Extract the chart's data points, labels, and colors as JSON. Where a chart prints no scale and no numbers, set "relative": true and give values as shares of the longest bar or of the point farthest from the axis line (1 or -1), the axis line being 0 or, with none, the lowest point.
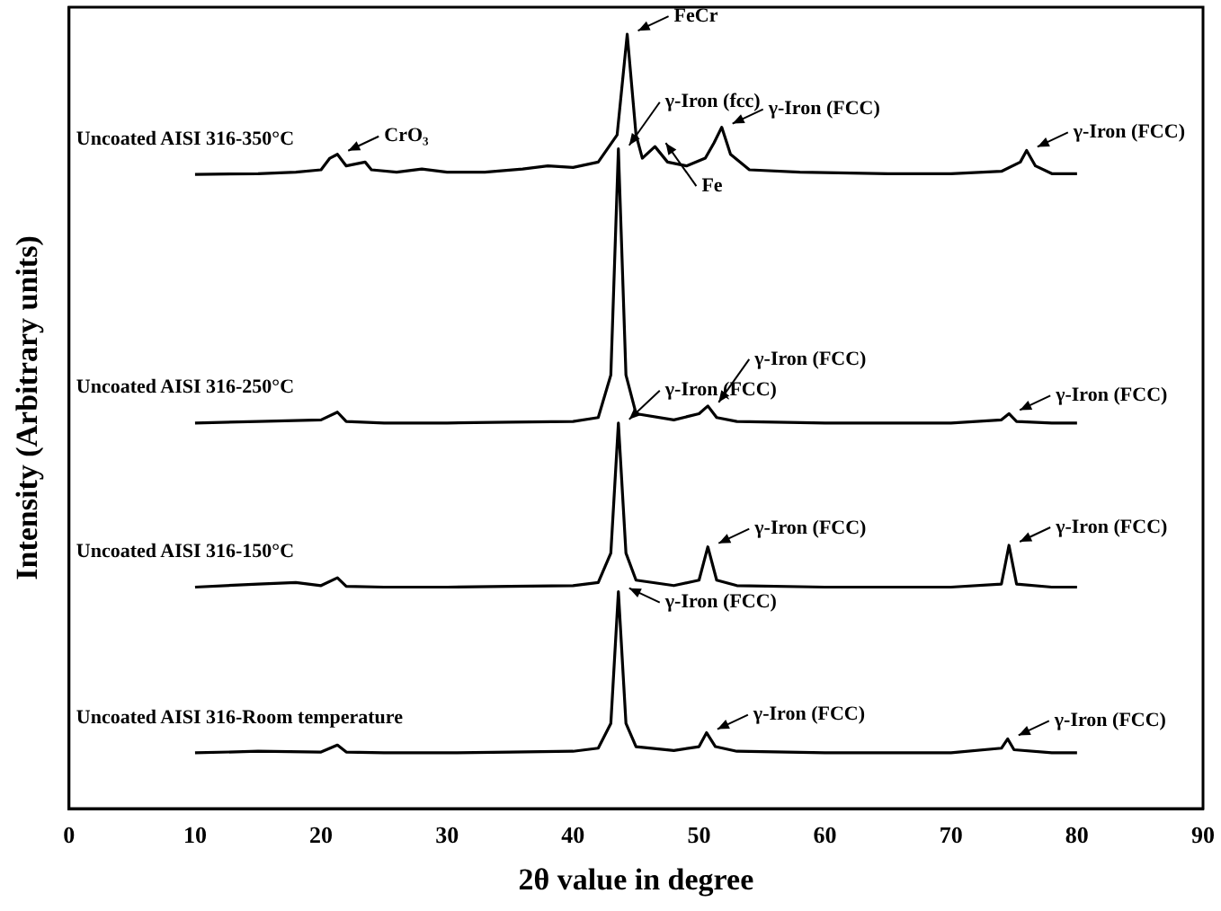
{
  "chart_data": {
    "type": "line",
    "relative": true,
    "xlabel": "2θ value in degree",
    "ylabel": "Intensity (Arbitrary units)",
    "xlim": [
      0,
      90
    ],
    "xticks": [
      0,
      10,
      20,
      30,
      40,
      50,
      60,
      70,
      80,
      90
    ],
    "grid": false,
    "legend": false,
    "tick_labels": "x",
    "marker": "none",
    "line_style": "solid",
    "series": [
      {
        "name": "Uncoated AISI 316-Room temperature",
        "color": "#000000",
        "x": [
          10,
          15,
          20,
          21.3,
          22,
          25,
          30,
          35,
          40,
          42,
          43,
          43.6,
          44.2,
          45,
          48,
          50,
          50.6,
          51.3,
          53,
          60,
          70,
          74,
          74.5,
          75,
          78,
          80
        ],
        "values": [
          0.072,
          0.074,
          0.073,
          0.082,
          0.073,
          0.072,
          0.072,
          0.073,
          0.074,
          0.078,
          0.11,
          0.28,
          0.11,
          0.08,
          0.075,
          0.08,
          0.098,
          0.08,
          0.074,
          0.072,
          0.072,
          0.078,
          0.09,
          0.076,
          0.072,
          0.072
        ]
      },
      {
        "name": "Uncoated AISI 316-150°C",
        "color": "#000000",
        "x": [
          10,
          15,
          18,
          20,
          21.3,
          22,
          25,
          30,
          35,
          40,
          42,
          43,
          43.6,
          44.2,
          45,
          48,
          50,
          50.7,
          51.4,
          53,
          60,
          70,
          74,
          74.6,
          75.2,
          78,
          80
        ],
        "values": [
          0.286,
          0.29,
          0.292,
          0.288,
          0.298,
          0.287,
          0.286,
          0.286,
          0.287,
          0.288,
          0.292,
          0.33,
          0.498,
          0.33,
          0.295,
          0.288,
          0.295,
          0.338,
          0.295,
          0.288,
          0.286,
          0.286,
          0.29,
          0.34,
          0.29,
          0.286,
          0.286
        ]
      },
      {
        "name": "Uncoated AISI 316-250°C",
        "color": "#000000",
        "x": [
          10,
          15,
          20,
          21.3,
          22,
          25,
          30,
          35,
          40,
          42,
          43,
          43.6,
          44.2,
          45,
          48,
          50,
          50.7,
          51.4,
          53,
          60,
          70,
          74,
          74.6,
          75.2,
          78,
          80
        ],
        "values": [
          0.498,
          0.5,
          0.502,
          0.512,
          0.5,
          0.498,
          0.498,
          0.499,
          0.5,
          0.505,
          0.56,
          0.852,
          0.56,
          0.51,
          0.502,
          0.51,
          0.52,
          0.505,
          0.5,
          0.498,
          0.498,
          0.502,
          0.51,
          0.5,
          0.498,
          0.498
        ]
      },
      {
        "name": "Uncoated AISI 316-350°C",
        "color": "#000000",
        "x": [
          10,
          15,
          18,
          20,
          20.7,
          21.3,
          22,
          23.5,
          24,
          26,
          28,
          30,
          33,
          36,
          38,
          40,
          42,
          43.5,
          44.3,
          45,
          45.5,
          46.5,
          47.5,
          49,
          50.5,
          51.2,
          51.8,
          52.5,
          54,
          58,
          65,
          70,
          74,
          75.5,
          76,
          76.7,
          78,
          80
        ],
        "values": [
          0.819,
          0.82,
          0.822,
          0.825,
          0.84,
          0.845,
          0.83,
          0.835,
          0.825,
          0.822,
          0.826,
          0.822,
          0.822,
          0.826,
          0.83,
          0.828,
          0.835,
          0.87,
          1.0,
          0.87,
          0.84,
          0.855,
          0.835,
          0.83,
          0.84,
          0.86,
          0.88,
          0.845,
          0.825,
          0.822,
          0.82,
          0.82,
          0.823,
          0.835,
          0.85,
          0.83,
          0.82,
          0.82
        ]
      }
    ],
    "annotations": [
      {
        "text": "γ-Iron (FCC)",
        "x": 43.6,
        "y": 0.28
      },
      {
        "text": "γ-Iron (FCC)",
        "x": 50.6,
        "y": 0.098
      },
      {
        "text": "γ-Iron (FCC)",
        "x": 74.5,
        "y": 0.09
      },
      {
        "text": "γ-Iron (FCC)",
        "x": 43.6,
        "y": 0.498
      },
      {
        "text": "γ-Iron (FCC)",
        "x": 50.7,
        "y": 0.338
      },
      {
        "text": "γ-Iron (FCC)",
        "x": 74.6,
        "y": 0.34
      },
      {
        "text": "γ-Iron (fcc)",
        "x": 43.6,
        "y": 0.852
      },
      {
        "text": "γ-Iron (FCC)",
        "x": 50.7,
        "y": 0.52
      },
      {
        "text": "γ-Iron (FCC)",
        "x": 74.6,
        "y": 0.51
      },
      {
        "text": "FeCr",
        "x": 44.3,
        "y": 1.0
      },
      {
        "text": "Fe",
        "x": 46.5,
        "y": 0.855
      },
      {
        "text": "CrO₃",
        "x": 21.3,
        "y": 0.845
      },
      {
        "text": "γ-Iron (FCC)",
        "x": 51.8,
        "y": 0.88
      },
      {
        "text": "γ-Iron (FCC)",
        "x": 76,
        "y": 0.85
      }
    ]
  }
}
